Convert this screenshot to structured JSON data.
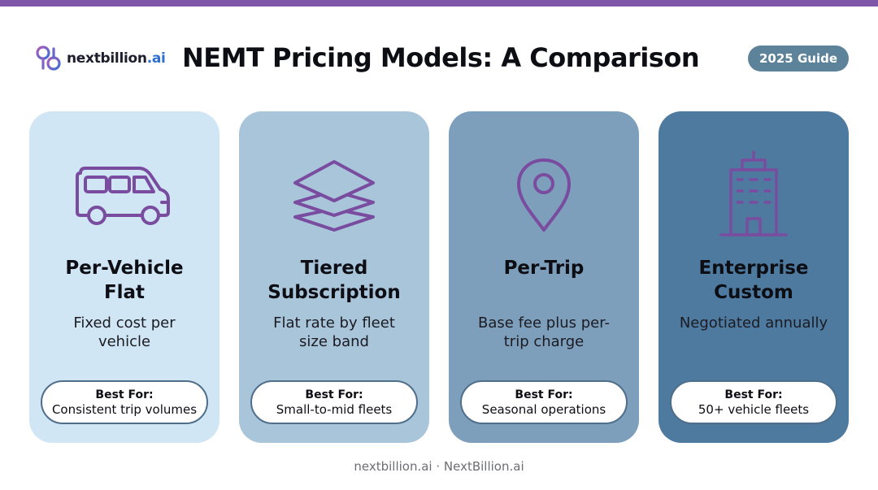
{
  "header": {
    "logo_text": "nextbillion",
    "logo_suffix": ".ai",
    "title": "NEMT Pricing Models: A Comparison",
    "badge": "2025 Guide"
  },
  "cards": [
    {
      "icon": "van-icon",
      "title_line1": "Per-Vehicle",
      "title_line2": "Flat",
      "desc": "Fixed cost per vehicle",
      "best_for_label": "Best For:",
      "best_for_value": "Consistent trip volumes"
    },
    {
      "icon": "layers-icon",
      "title_line1": "Tiered",
      "title_line2": "Subscription",
      "desc": "Flat rate by fleet size band",
      "best_for_label": "Best For:",
      "best_for_value": "Small-to-mid fleets"
    },
    {
      "icon": "map-pin-icon",
      "title_line1": "Per-Trip",
      "title_line2": "",
      "desc": "Base fee plus per-trip charge",
      "best_for_label": "Best For:",
      "best_for_value": "Seasonal operations"
    },
    {
      "icon": "building-icon",
      "title_line1": "Enterprise",
      "title_line2": "Custom",
      "desc": "Negotiated annually",
      "best_for_label": "Best For:",
      "best_for_value": "50+ vehicle fleets"
    }
  ],
  "footer": {
    "text": "nextbillion.ai · NextBillion.ai"
  },
  "colors": {
    "accent_purple": "#7f56a8",
    "icon_purple": "#7a4ca0",
    "card_1": "#d0e6f4",
    "card_2": "#a9c5da",
    "card_3": "#7e9fbb",
    "card_4": "#4e7aa0",
    "badge": "#5c8399"
  }
}
